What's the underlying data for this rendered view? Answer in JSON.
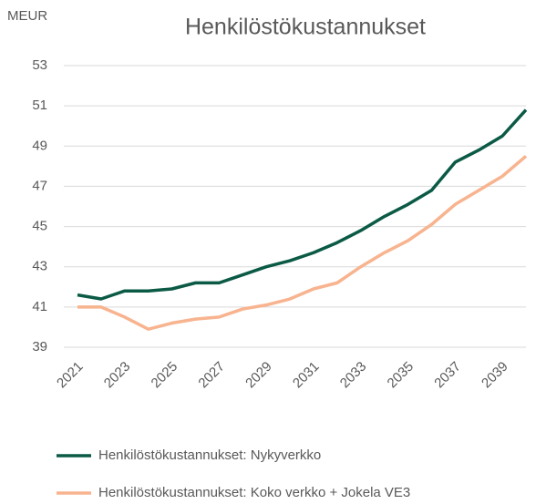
{
  "chart_data": {
    "type": "line",
    "title": "Henkilöstökustannukset",
    "ylabel": "MEUR",
    "x": [
      2021,
      2022,
      2023,
      2024,
      2025,
      2026,
      2027,
      2028,
      2029,
      2030,
      2031,
      2032,
      2033,
      2034,
      2035,
      2036,
      2037,
      2038,
      2039,
      2040
    ],
    "series": [
      {
        "name": "Henkilöstökustannukset: Nykyverkko",
        "color": "#0b5a45",
        "values": [
          41.6,
          41.4,
          41.8,
          41.8,
          41.9,
          42.2,
          42.2,
          42.6,
          43.0,
          43.3,
          43.7,
          44.2,
          44.8,
          45.5,
          46.1,
          46.8,
          48.2,
          48.8,
          49.5,
          50.8
        ]
      },
      {
        "name": "Henkilöstökustannukset: Koko verkko + Jokela VE3",
        "color": "#f8b38f",
        "values": [
          41.0,
          41.0,
          40.5,
          39.9,
          40.2,
          40.4,
          40.5,
          40.9,
          41.1,
          41.4,
          41.9,
          42.2,
          43.0,
          43.7,
          44.3,
          45.1,
          46.1,
          46.8,
          47.5,
          48.5
        ]
      }
    ],
    "xlim": [
      2021,
      2040
    ],
    "xticks": [
      2021,
      2023,
      2025,
      2027,
      2029,
      2031,
      2033,
      2035,
      2037,
      2039
    ],
    "ylim": [
      39,
      53
    ],
    "yticks": [
      39,
      41,
      43,
      45,
      47,
      49,
      51,
      53
    ],
    "grid": true,
    "legend": "bottom"
  }
}
